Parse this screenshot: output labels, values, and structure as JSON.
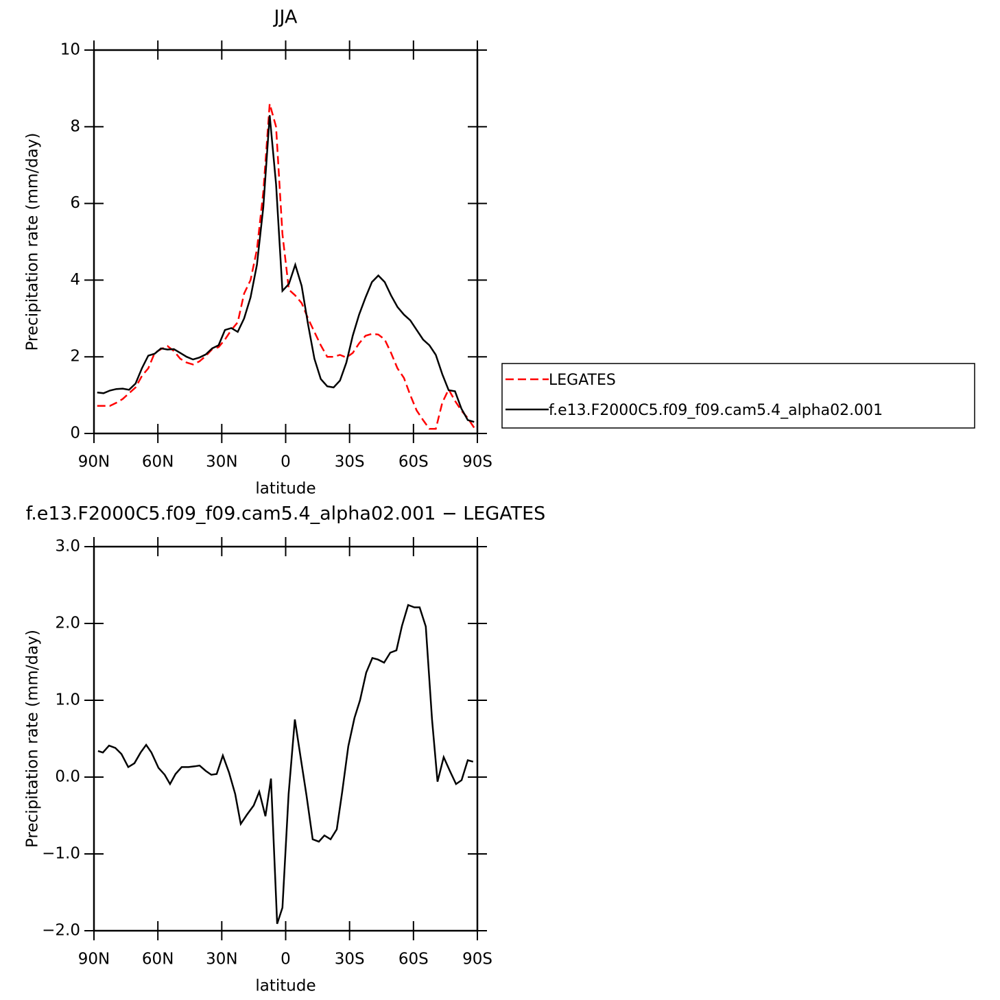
{
  "chart_data": [
    {
      "type": "line",
      "title": "JJA",
      "xlabel": "latitude",
      "ylabel": "Precipitation rate (mm/day)",
      "x": [
        88.5,
        85.5,
        82.5,
        79.5,
        76.5,
        73.5,
        70.5,
        67.5,
        64.5,
        61.5,
        58.5,
        55.5,
        52.5,
        49.5,
        46.5,
        43.5,
        40.5,
        37.5,
        34.5,
        31.5,
        28.5,
        25.5,
        22.5,
        19.5,
        16.5,
        13.5,
        10.5,
        7.5,
        4.5,
        1.5,
        -1.5,
        -4.5,
        -7.5,
        -10.5,
        -13.5,
        -16.5,
        -19.5,
        -22.5,
        -25.5,
        -28.5,
        -31.5,
        -34.5,
        -37.5,
        -40.5,
        -43.5,
        -46.5,
        -49.5,
        -52.5,
        -55.5,
        -58.5,
        -61.5,
        -64.5,
        -67.5,
        -70.5,
        -73.5,
        -76.5,
        -79.5,
        -82.5,
        -85.5,
        -88.5
      ],
      "series": [
        {
          "name": "LEGATES",
          "color": "#ff0000",
          "dashed": true,
          "values": [
            0.72,
            0.72,
            0.72,
            0.8,
            0.9,
            1.05,
            1.2,
            1.5,
            1.7,
            2.1,
            2.2,
            2.28,
            2.15,
            1.95,
            1.85,
            1.8,
            1.88,
            2.02,
            2.2,
            2.25,
            2.45,
            2.7,
            2.9,
            3.65,
            4.0,
            4.8,
            6.3,
            8.6,
            8.0,
            5.2,
            3.75,
            3.6,
            3.4,
            3.0,
            2.65,
            2.3,
            2.0,
            2.0,
            2.05,
            1.98,
            2.1,
            2.35,
            2.55,
            2.6,
            2.58,
            2.45,
            2.1,
            1.7,
            1.45,
            1.0,
            0.6,
            0.35,
            0.12,
            0.12,
            0.8,
            1.15,
            0.85,
            0.6,
            0.4,
            0.15
          ]
        },
        {
          "name": "f.e13.F2000C5.f09_f09.cam5.4_alpha02.001",
          "color": "#000000",
          "dashed": false,
          "values": [
            1.07,
            1.05,
            1.12,
            1.16,
            1.17,
            1.14,
            1.3,
            1.7,
            2.03,
            2.08,
            2.22,
            2.19,
            2.2,
            2.1,
            2.0,
            1.93,
            1.98,
            2.06,
            2.22,
            2.3,
            2.7,
            2.75,
            2.65,
            3.0,
            3.55,
            4.4,
            5.9,
            8.3,
            6.5,
            3.72,
            3.9,
            4.4,
            3.85,
            2.85,
            1.95,
            1.42,
            1.23,
            1.2,
            1.38,
            1.85,
            2.55,
            3.1,
            3.55,
            3.95,
            4.12,
            3.95,
            3.6,
            3.3,
            3.1,
            2.95,
            2.7,
            2.45,
            2.3,
            2.05,
            1.55,
            1.13,
            1.1,
            0.65,
            0.35,
            0.3
          ]
        }
      ],
      "xlim": [
        90,
        -90
      ],
      "xticks": [
        {
          "value": 90,
          "label": "90N"
        },
        {
          "value": 60,
          "label": "60N"
        },
        {
          "value": 30,
          "label": "30N"
        },
        0,
        {
          "value": -30,
          "label": "30S"
        },
        {
          "value": -60,
          "label": "60S"
        },
        {
          "value": -90,
          "label": "90S"
        }
      ],
      "ylim": [
        0,
        10
      ],
      "yticks": [
        0,
        2,
        4,
        6,
        8,
        10
      ],
      "legend": "right"
    },
    {
      "type": "line",
      "title": "f.e13.F2000C5.f09_f09.cam5.4_alpha02.001  −  LEGATES",
      "xlabel": "latitude",
      "ylabel": "Precipitation rate (mm/day)",
      "x": [
        88.1,
        85.8,
        82.9,
        80.0,
        77.1,
        73.9,
        71.0,
        68.1,
        65.5,
        63.0,
        59.7,
        56.8,
        54.3,
        51.7,
        48.8,
        45.6,
        42.7,
        40.4,
        37.5,
        34.9,
        32.4,
        29.5,
        26.6,
        23.7,
        21.1,
        18.2,
        15.0,
        12.4,
        9.5,
        6.9,
        4.0,
        1.5,
        -1.4,
        -4.3,
        -6.9,
        -9.8,
        -12.7,
        -15.6,
        -18.2,
        -21.1,
        -24.0,
        -26.5,
        -29.4,
        -32.3,
        -34.9,
        -37.8,
        -40.7,
        -43.3,
        -46.2,
        -49.1,
        -52.0,
        -54.6,
        -57.5,
        -60.4,
        -62.9,
        -65.8,
        -68.7,
        -71.3,
        -74.2,
        -77.1,
        -80.0,
        -82.6,
        -85.5,
        -88.0
      ],
      "values": [
        0.34,
        0.32,
        0.41,
        0.38,
        0.3,
        0.13,
        0.18,
        0.32,
        0.42,
        0.32,
        0.12,
        0.03,
        -0.09,
        0.04,
        0.13,
        0.13,
        0.14,
        0.15,
        0.08,
        0.03,
        0.04,
        0.28,
        0.06,
        -0.22,
        -0.61,
        -0.49,
        -0.37,
        -0.19,
        -0.51,
        -0.02,
        -1.91,
        -1.7,
        -0.22,
        0.75,
        0.28,
        -0.24,
        -0.81,
        -0.84,
        -0.76,
        -0.81,
        -0.68,
        -0.2,
        0.4,
        0.77,
        1.0,
        1.36,
        1.55,
        1.53,
        1.49,
        1.62,
        1.65,
        1.97,
        2.24,
        2.21,
        2.21,
        1.96,
        0.75,
        -0.06,
        0.26,
        0.08,
        -0.09,
        -0.04,
        0.22,
        0.2
      ],
      "color": "#000000",
      "xlim": [
        90,
        -90
      ],
      "xticks": [
        {
          "value": 90,
          "label": "90N"
        },
        {
          "value": 60,
          "label": "60N"
        },
        {
          "value": 30,
          "label": "30N"
        },
        0,
        {
          "value": -30,
          "label": "30S"
        },
        {
          "value": -60,
          "label": "60S"
        },
        {
          "value": -90,
          "label": "90S"
        }
      ],
      "ylim": [
        -2,
        3
      ],
      "yticks": [
        {
          "value": -2,
          "label": "−2.0"
        },
        {
          "value": -1,
          "label": "−1.0"
        },
        {
          "value": 0,
          "label": "0.0"
        },
        {
          "value": 1,
          "label": "1.0"
        },
        {
          "value": 2,
          "label": "2.0"
        },
        {
          "value": 3,
          "label": "3.0"
        }
      ]
    }
  ]
}
